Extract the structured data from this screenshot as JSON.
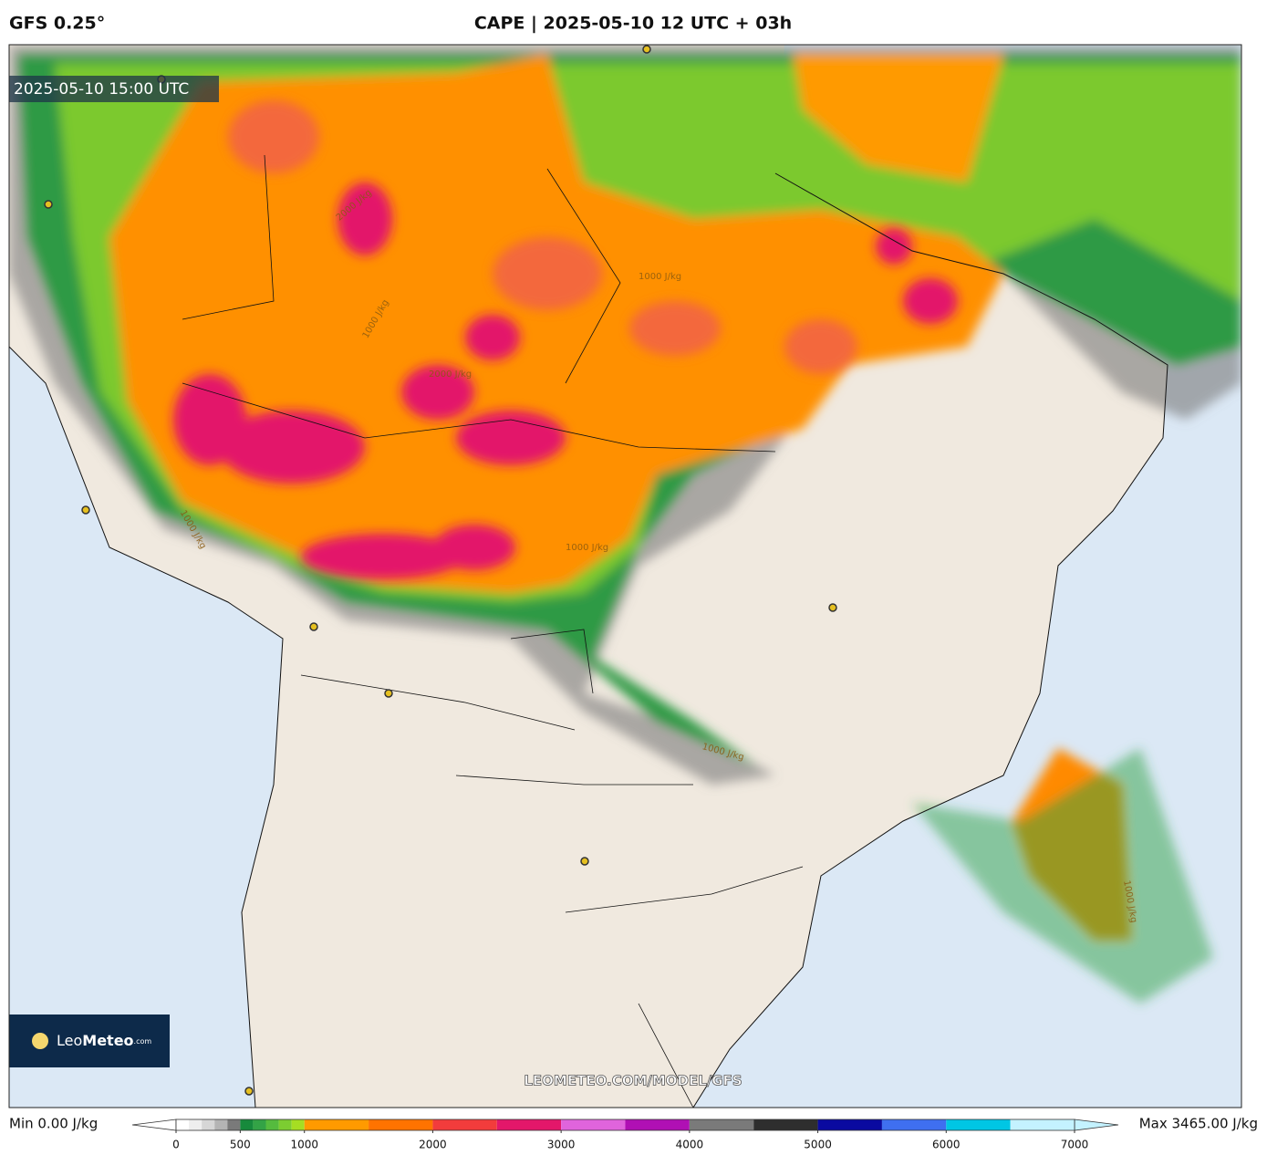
{
  "header": {
    "model": "GFS 0.25°",
    "title": "CAPE | 2025-05-10 12 UTC + 03h"
  },
  "map": {
    "timestamp": "2025-05-10 15:00 UTC",
    "watermark": "LEOMETEO.COM/MODEL/GFS",
    "logo": {
      "light": "Leo",
      "bold": "Meteo",
      "suffix": ".com"
    },
    "contour_labels": [
      "1000 J/kg",
      "2000 J/kg",
      "1000 J/kg",
      "2000 J/kg",
      "1000 J/kg",
      "1000 J/kg",
      "1000 J/kg",
      "1000 J/kg"
    ]
  },
  "colorbar": {
    "min_label": "Min 0.00 J/kg",
    "max_label": "Max 3465.00 J/kg",
    "range": [
      0,
      7000
    ],
    "ticks": [
      0,
      500,
      1000,
      2000,
      3000,
      4000,
      5000,
      6000,
      7000
    ],
    "levels": [
      0,
      100,
      200,
      300,
      400,
      500,
      600,
      700,
      800,
      900,
      1000,
      1500,
      2000,
      2500,
      3000,
      3500,
      4000,
      4500,
      5000,
      5500,
      6000,
      6500,
      7000
    ],
    "colors": [
      "#ffffff",
      "#eeeeee",
      "#d6d6d6",
      "#b4b4b4",
      "#7a7a7a",
      "#178a3c",
      "#33a346",
      "#55bb3e",
      "#7ccd31",
      "#a6de22",
      "#ff9a00",
      "#ff7300",
      "#f23c3c",
      "#e3176a",
      "#e064dc",
      "#b010b4",
      "#7a7a7a",
      "#2e2e2e",
      "#0a0aa0",
      "#3f6ff0",
      "#00c6e4",
      "#c4f2ff"
    ]
  }
}
